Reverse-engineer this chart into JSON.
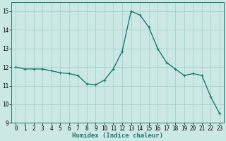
{
  "x": [
    0,
    1,
    2,
    3,
    4,
    5,
    6,
    7,
    8,
    9,
    10,
    11,
    12,
    13,
    14,
    15,
    16,
    17,
    18,
    19,
    20,
    21,
    22,
    23
  ],
  "y": [
    12.0,
    11.9,
    11.9,
    11.9,
    11.8,
    11.7,
    11.65,
    11.55,
    11.1,
    11.05,
    11.3,
    11.9,
    12.85,
    15.0,
    14.8,
    14.15,
    13.0,
    12.25,
    11.9,
    11.55,
    11.65,
    11.55,
    10.4,
    9.5
  ],
  "line_color": "#1a7a6e",
  "marker": "+",
  "bg_color": "#cce8e4",
  "grid_color": "#9ecec8",
  "xlabel": "Humidex (Indice chaleur)",
  "ylim": [
    9,
    15.5
  ],
  "xlim": [
    -0.5,
    23.5
  ],
  "yticks": [
    9,
    10,
    11,
    12,
    13,
    14,
    15
  ],
  "xticks": [
    0,
    1,
    2,
    3,
    4,
    5,
    6,
    7,
    8,
    9,
    10,
    11,
    12,
    13,
    14,
    15,
    16,
    17,
    18,
    19,
    20,
    21,
    22,
    23
  ],
  "xlabel_fontsize": 6.5,
  "tick_fontsize": 5.5,
  "line_width": 1.0,
  "marker_size": 3.5,
  "marker_ew": 0.8
}
